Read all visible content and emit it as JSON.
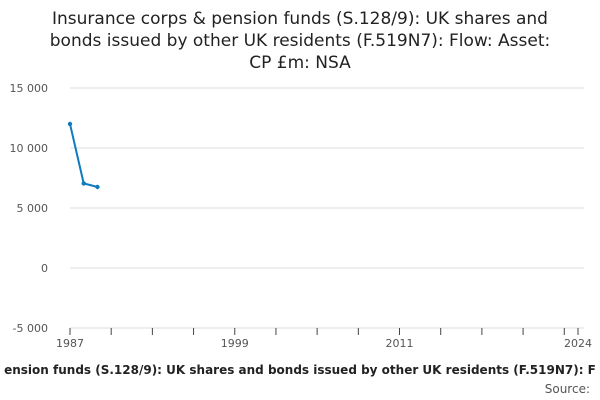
{
  "chart_data": {
    "type": "line",
    "title_lines": [
      "Insurance corps & pension funds (S.128/9): UK shares and",
      "bonds issued by other UK residents (F.519N7): Flow: Asset:",
      "CP £m: NSA"
    ],
    "xlabel": "ension funds (S.128/9): UK shares and bonds issued by other UK residents (F.519N7): F",
    "source_label": "Source:",
    "xlim": [
      1987,
      2024
    ],
    "ylim": [
      -5000,
      15000
    ],
    "x_ticks": [
      1987,
      1999,
      2011,
      2024
    ],
    "y_ticks": [
      15000,
      10000,
      5000,
      0,
      -5000
    ],
    "y_tick_labels": [
      "15 000",
      "10 000",
      "5 000",
      "0",
      "-5 000"
    ],
    "grid": true,
    "series": [
      {
        "x": [
          1987,
          1988,
          1989
        ],
        "y": [
          12000,
          7050,
          6750
        ],
        "color": "#0f7bbf"
      }
    ]
  }
}
